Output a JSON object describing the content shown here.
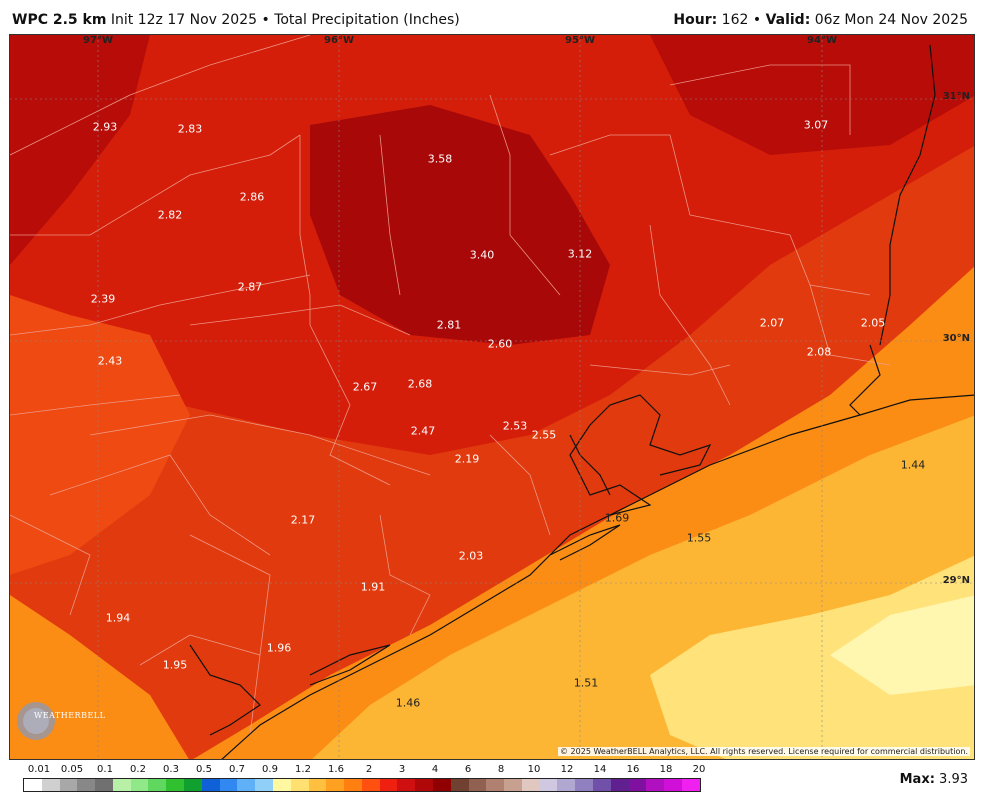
{
  "header": {
    "model": "WPC 2.5 km",
    "init": "Init 12z 17 Nov 2025",
    "separator": "•",
    "product": "Total Precipitation (Inches)",
    "hour_label": "Hour:",
    "hour_value": "162",
    "valid_label": "Valid:",
    "valid_value": "06z Mon 24 Nov 2025"
  },
  "map": {
    "longitudes": [
      "97°W",
      "96°W",
      "95°W",
      "94°W"
    ],
    "latitudes": [
      "31°N",
      "30°N",
      "29°N"
    ],
    "values": [
      "2.93",
      "2.83",
      "3.58",
      "3.07",
      "2.86",
      "2.82",
      "3.40",
      "3.12",
      "2.87",
      "2.39",
      "2.81",
      "2.60",
      "2.07",
      "2.05",
      "2.08",
      "2.43",
      "2.67",
      "2.68",
      "2.53",
      "2.55",
      "2.47",
      "2.19",
      "1.44",
      "1.69",
      "2.17",
      "1.55",
      "2.03",
      "1.91",
      "1.94",
      "1.96",
      "1.95",
      "1.51",
      "1.46"
    ],
    "copyright": "© 2025 WeatherBELL Analytics, LLC. All rights reserved. License required for commercial distribution.",
    "logo_text": "WEATHERBELL"
  },
  "legend": {
    "labels": [
      "0.01",
      "0.05",
      "0.1",
      "0.2",
      "0.3",
      "0.5",
      "0.7",
      "0.9",
      "1.2",
      "1.6",
      "2",
      "3",
      "4",
      "6",
      "8",
      "10",
      "12",
      "14",
      "16",
      "18",
      "20"
    ],
    "colors": [
      "#ffffff",
      "#d0d0d0",
      "#a8a8a8",
      "#888888",
      "#707070",
      "#b8f0a8",
      "#90e888",
      "#60d860",
      "#30c030",
      "#10a030",
      "#1060d8",
      "#3088f0",
      "#60b0f8",
      "#90d0f8",
      "#fff8a0",
      "#ffe070",
      "#ffc040",
      "#ffa020",
      "#ff8010",
      "#ff5010",
      "#f02010",
      "#d01010",
      "#b00808",
      "#900000",
      "#704030",
      "#906050",
      "#b08070",
      "#c8a090",
      "#e0c8c0",
      "#d0c8e0",
      "#b0a8d0",
      "#9080c0",
      "#7050a8",
      "#602090",
      "#8010a0",
      "#b010c0",
      "#d010d8",
      "#f020f0"
    ],
    "max_label": "Max:",
    "max_value": "3.93"
  }
}
